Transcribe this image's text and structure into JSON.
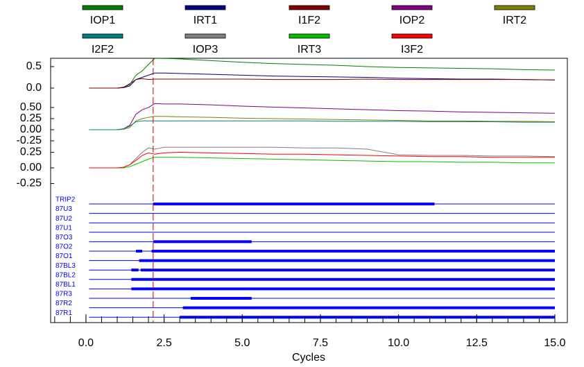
{
  "chart_data": {
    "type": "line",
    "xlabel": "Cycles",
    "xlim": [
      -1.13,
      15.4
    ],
    "xticks": [
      {
        "value": 0,
        "label": "0.0"
      },
      2.5,
      {
        "value": 5,
        "label": "5.0"
      },
      7.5,
      {
        "value": 10,
        "label": "10.0"
      },
      12.5,
      {
        "value": 15,
        "label": "15.0"
      }
    ],
    "xminorticks": [
      -1,
      -0.5,
      0,
      0.5,
      1,
      1.5,
      2,
      2.5,
      3,
      3.5,
      4,
      4.5,
      5,
      5.5,
      6,
      6.5,
      7,
      7.5,
      8,
      8.5,
      9,
      9.5,
      10,
      10.5,
      11,
      11.5,
      12,
      12.5,
      13,
      13.5,
      14,
      14.5,
      15
    ],
    "marker_x": 2.15,
    "marker_color": "#c00000",
    "x": [
      0.1,
      1.0,
      1.2,
      1.4,
      1.6,
      1.8,
      2.0,
      2.2,
      2.5,
      3,
      4,
      5,
      6,
      7,
      8,
      9,
      10,
      11,
      12,
      13,
      14,
      15
    ],
    "panels": [
      {
        "ylim": [
          -0.3,
          0.7
        ],
        "yticks": [
          0.5,
          {
            "value": 0,
            "label": "0.0"
          }
        ],
        "series": [
          {
            "name": "IOP1",
            "color": "#008000",
            "values": [
              0,
              0,
              0.02,
              0.08,
              0.3,
              0.4,
              0.55,
              0.69,
              0.69,
              0.68,
              0.64,
              0.6,
              0.57,
              0.55,
              0.53,
              0.5,
              0.48,
              0.47,
              0.46,
              0.45,
              0.43,
              0.42
            ]
          },
          {
            "name": "IRT1",
            "color": "#000080",
            "values": [
              0,
              0,
              0.01,
              0.05,
              0.2,
              0.25,
              0.3,
              0.35,
              0.35,
              0.34,
              0.32,
              0.3,
              0.28,
              0.27,
              0.26,
              0.25,
              0.23,
              0.22,
              0.21,
              0.21,
              0.2,
              0.19
            ]
          },
          {
            "name": "I1F2",
            "color": "#800000",
            "values": [
              0,
              0,
              0.02,
              0.1,
              0.2,
              0.22,
              0.2,
              0.21,
              0.21,
              0.21,
              0.21,
              0.21,
              0.2,
              0.2,
              0.2,
              0.21,
              0.2,
              0.2,
              0.2,
              0.2,
              0.2,
              0.19
            ]
          }
        ]
      },
      {
        "ylim": [
          -0.35,
          0.62
        ],
        "yticks": [
          {
            "value": 0.5,
            "label": "0.50"
          },
          0.25,
          {
            "value": 0,
            "label": "0.00"
          },
          -0.25
        ],
        "series": [
          {
            "name": "IOP2",
            "color": "#800080",
            "values": [
              0,
              0,
              0.02,
              0.1,
              0.35,
              0.45,
              0.5,
              0.59,
              0.58,
              0.58,
              0.56,
              0.53,
              0.51,
              0.49,
              0.47,
              0.45,
              0.43,
              0.42,
              0.4,
              0.39,
              0.38,
              0.37
            ]
          },
          {
            "name": "IRT2",
            "color": "#808000",
            "values": [
              0,
              0,
              0.01,
              0.05,
              0.2,
              0.25,
              0.28,
              0.3,
              0.3,
              0.29,
              0.28,
              0.26,
              0.25,
              0.24,
              0.23,
              0.22,
              0.21,
              0.2,
              0.2,
              0.19,
              0.19,
              0.18
            ]
          },
          {
            "name": "I2F2",
            "color": "#008080",
            "values": [
              0,
              0,
              0.02,
              0.08,
              0.18,
              0.2,
              0.2,
              0.2,
              0.2,
              0.2,
              0.2,
              0.2,
              0.2,
              0.2,
              0.19,
              0.19,
              0.19,
              0.18,
              0.18,
              0.18,
              0.17,
              0.17
            ]
          }
        ]
      },
      {
        "ylim": [
          -0.4,
          0.35
        ],
        "yticks": [
          0.25,
          {
            "value": 0,
            "label": "0.00"
          },
          -0.25
        ],
        "series": [
          {
            "name": "IOP3",
            "color": "#808080",
            "values": [
              0,
              0,
              0.01,
              0.05,
              0.15,
              0.25,
              0.32,
              0.3,
              0.33,
              0.33,
              0.33,
              0.33,
              0.33,
              0.32,
              0.32,
              0.3,
              0.21,
              0.2,
              0.2,
              0.19,
              0.19,
              0.18
            ]
          },
          {
            "name": "IRT3",
            "color": "#00c000",
            "values": [
              0,
              0,
              0,
              0.02,
              0.06,
              0.1,
              0.14,
              0.17,
              0.17,
              0.17,
              0.16,
              0.15,
              0.14,
              0.13,
              0.12,
              0.11,
              0.1,
              0.1,
              0.09,
              0.09,
              0.08,
              0.08
            ]
          },
          {
            "name": "I3F2",
            "color": "#ff0000",
            "values": [
              0,
              0,
              0.01,
              0.05,
              0.12,
              0.2,
              0.24,
              0.22,
              0.24,
              0.25,
              0.24,
              0.23,
              0.22,
              0.22,
              0.21,
              0.2,
              0.19,
              0.18,
              0.18,
              0.17,
              0.17,
              0.17
            ]
          }
        ]
      }
    ],
    "digital_color": "#0000ff",
    "digital": [
      {
        "name": "TRIP2",
        "on": [
          [
            2.15,
            11.15
          ]
        ]
      },
      {
        "name": "87U3",
        "on": []
      },
      {
        "name": "87U2",
        "on": []
      },
      {
        "name": "87U1",
        "on": []
      },
      {
        "name": "87O3",
        "on": [
          [
            2.15,
            5.3
          ]
        ]
      },
      {
        "name": "87O2",
        "on": [
          [
            1.6,
            1.8
          ],
          [
            2.1,
            15
          ]
        ]
      },
      {
        "name": "87O1",
        "on": [
          [
            1.7,
            15
          ]
        ]
      },
      {
        "name": "87BL3",
        "on": [
          [
            1.45,
            1.68
          ],
          [
            1.75,
            15
          ]
        ]
      },
      {
        "name": "87BL2",
        "on": [
          [
            1.45,
            15
          ]
        ]
      },
      {
        "name": "87BL1",
        "on": [
          [
            1.45,
            15
          ]
        ]
      },
      {
        "name": "87R3",
        "on": [
          [
            3.35,
            5.3
          ]
        ]
      },
      {
        "name": "87R2",
        "on": [
          [
            3.1,
            15
          ]
        ]
      },
      {
        "name": "87R1",
        "on": [
          [
            3.0,
            15
          ]
        ]
      }
    ]
  }
}
